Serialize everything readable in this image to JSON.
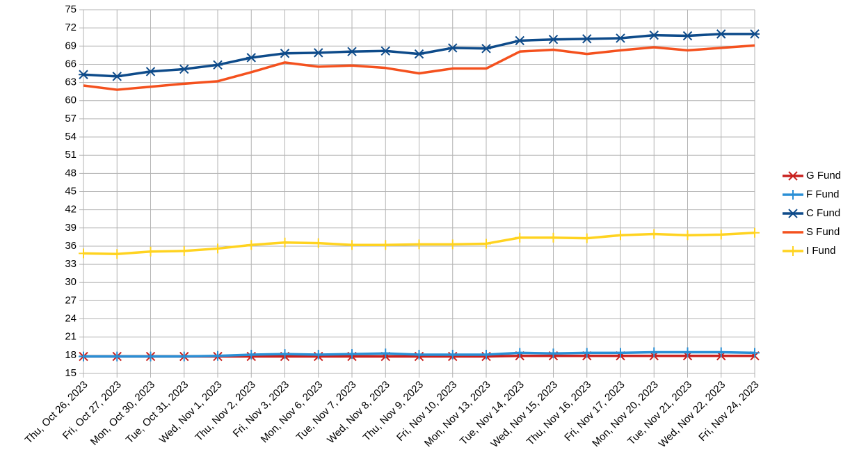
{
  "chart_data": {
    "type": "line",
    "categories": [
      "Thu, Oct 26, 2023",
      "Fri, Oct 27, 2023",
      "Mon, Oct 30, 2023",
      "Tue, Oct 31, 2023",
      "Wed, Nov 1, 2023",
      "Thu, Nov 2, 2023",
      "Fri, Nov 3, 2023",
      "Mon, Nov 6, 2023",
      "Tue, Nov 7, 2023",
      "Wed, Nov 8, 2023",
      "Thu, Nov 9, 2023",
      "Fri, Nov 10, 2023",
      "Mon, Nov 13, 2023",
      "Tue, Nov 14, 2023",
      "Wed, Nov 15, 2023",
      "Thu, Nov 16, 2023",
      "Fri, Nov 17, 2023",
      "Mon, Nov 20, 2023",
      "Tue, Nov 21, 2023",
      "Wed, Nov 22, 2023",
      "Fri, Nov 24, 2023"
    ],
    "series": [
      {
        "name": "G Fund",
        "color": "#c9211e",
        "marker": "x",
        "values": [
          17.8,
          17.8,
          17.8,
          17.8,
          17.8,
          17.8,
          17.8,
          17.8,
          17.8,
          17.8,
          17.8,
          17.8,
          17.8,
          17.9,
          17.9,
          17.9,
          17.9,
          17.9,
          17.9,
          17.9,
          17.9
        ]
      },
      {
        "name": "F Fund",
        "color": "#2a8fd6",
        "marker": "plus",
        "values": [
          17.8,
          17.8,
          17.8,
          17.8,
          17.9,
          18.1,
          18.2,
          18.1,
          18.2,
          18.3,
          18.1,
          18.1,
          18.1,
          18.4,
          18.3,
          18.4,
          18.4,
          18.5,
          18.5,
          18.5,
          18.4
        ]
      },
      {
        "name": "C Fund",
        "color": "#0e4b8a",
        "marker": "star",
        "values": [
          64.3,
          64.0,
          64.8,
          65.2,
          65.9,
          67.1,
          67.8,
          67.9,
          68.1,
          68.2,
          67.7,
          68.7,
          68.6,
          69.9,
          70.1,
          70.2,
          70.3,
          70.8,
          70.7,
          71.0,
          71.0
        ]
      },
      {
        "name": "S Fund",
        "color": "#f4511e",
        "marker": "none",
        "values": [
          62.5,
          61.8,
          62.3,
          62.8,
          63.2,
          64.7,
          66.3,
          65.6,
          65.8,
          65.4,
          64.5,
          65.3,
          65.3,
          68.1,
          68.4,
          67.7,
          68.3,
          68.8,
          68.3,
          68.7,
          69.1
        ]
      },
      {
        "name": "I Fund",
        "color": "#ffd320",
        "marker": "plus",
        "values": [
          34.8,
          34.7,
          35.1,
          35.2,
          35.6,
          36.2,
          36.6,
          36.5,
          36.2,
          36.2,
          36.3,
          36.3,
          36.4,
          37.4,
          37.4,
          37.3,
          37.8,
          38.0,
          37.8,
          37.9,
          38.2
        ]
      }
    ],
    "ylim": [
      15,
      75
    ],
    "yticks": [
      15,
      18,
      21,
      24,
      27,
      30,
      33,
      36,
      39,
      42,
      45,
      48,
      51,
      54,
      57,
      60,
      63,
      66,
      69,
      72,
      75
    ],
    "grid": true,
    "legend": "right"
  }
}
